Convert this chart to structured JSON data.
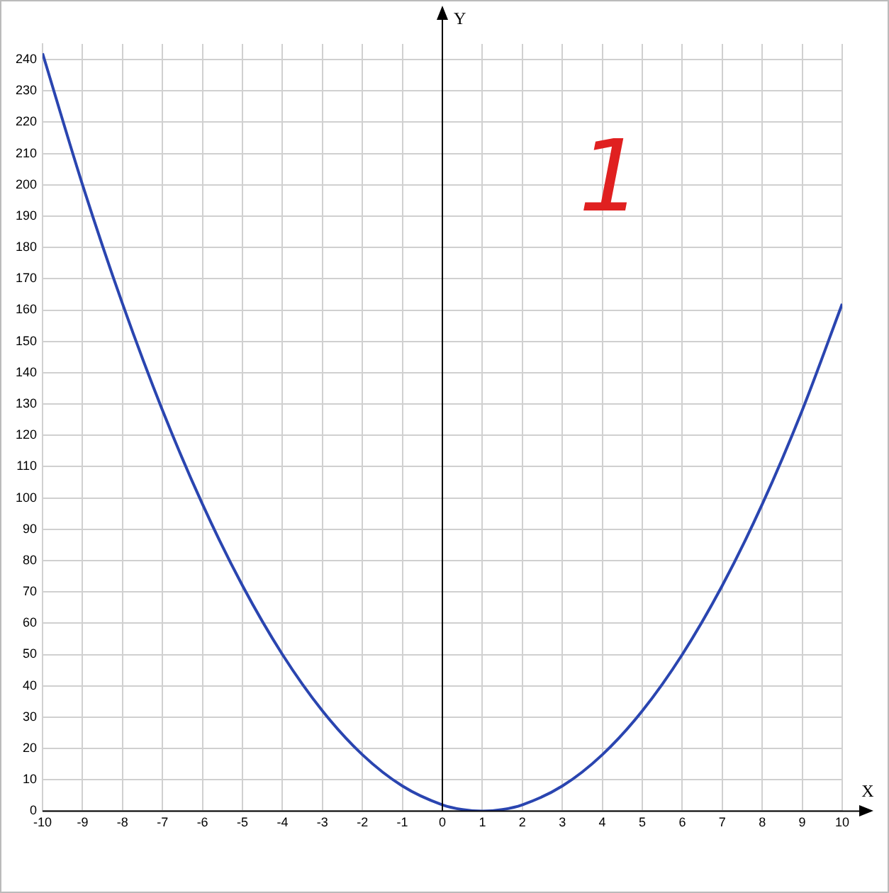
{
  "chart_data": {
    "type": "line",
    "xlabel": "X",
    "ylabel": "Y",
    "x": [
      -10,
      -9,
      -8,
      -7,
      -6,
      -5,
      -4,
      -3,
      -2,
      -1,
      0,
      0.5,
      1,
      1.5,
      2,
      3,
      4,
      5,
      6,
      7,
      8,
      9,
      10
    ],
    "series": [
      {
        "color": "#2a45b0",
        "values": [
          242,
          200,
          162,
          128,
          98,
          72,
          50,
          32,
          18,
          8,
          2,
          0.5,
          0,
          0.5,
          2,
          8,
          18,
          32,
          50,
          72,
          98,
          128,
          162
        ]
      }
    ],
    "xlim": [
      -10,
      10
    ],
    "ylim": [
      0,
      245
    ],
    "xticks": [
      -10,
      -9,
      -8,
      -7,
      -6,
      -5,
      -4,
      -3,
      -2,
      -1,
      0,
      1,
      2,
      3,
      4,
      5,
      6,
      7,
      8,
      9,
      10
    ],
    "yticks": [
      0,
      10,
      20,
      30,
      40,
      50,
      60,
      70,
      80,
      90,
      100,
      110,
      120,
      130,
      140,
      150,
      160,
      170,
      180,
      190,
      200,
      210,
      220,
      230,
      240
    ],
    "grid": true,
    "legend": false,
    "marker": "none",
    "line_style": "solid",
    "annotations": [
      "1"
    ]
  }
}
